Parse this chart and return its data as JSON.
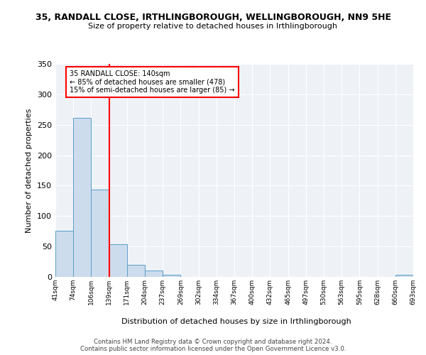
{
  "title1": "35, RANDALL CLOSE, IRTHLINGBOROUGH, WELLINGBOROUGH, NN9 5HE",
  "title2": "Size of property relative to detached houses in Irthlingborough",
  "xlabel": "Distribution of detached houses by size in Irthlingborough",
  "ylabel": "Number of detached properties",
  "bar_values": [
    76,
    261,
    143,
    54,
    20,
    10,
    4,
    0,
    0,
    0,
    0,
    0,
    0,
    0,
    0,
    0,
    0,
    0,
    0,
    4
  ],
  "categories": [
    "41sqm",
    "74sqm",
    "106sqm",
    "139sqm",
    "171sqm",
    "204sqm",
    "237sqm",
    "269sqm",
    "302sqm",
    "334sqm",
    "367sqm",
    "400sqm",
    "432sqm",
    "465sqm",
    "497sqm",
    "530sqm",
    "563sqm",
    "595sqm",
    "628sqm",
    "660sqm",
    "693sqm"
  ],
  "bar_color": "#ccdcec",
  "bar_edge_color": "#5a9ec8",
  "ylim": [
    0,
    350
  ],
  "yticks": [
    0,
    50,
    100,
    150,
    200,
    250,
    300,
    350
  ],
  "annotation_text": "35 RANDALL CLOSE: 140sqm\n← 85% of detached houses are smaller (478)\n15% of semi-detached houses are larger (85) →",
  "red_line_bin": 3,
  "footer1": "Contains HM Land Registry data © Crown copyright and database right 2024.",
  "footer2": "Contains public sector information licensed under the Open Government Licence v3.0.",
  "background_color": "#eef2f7"
}
